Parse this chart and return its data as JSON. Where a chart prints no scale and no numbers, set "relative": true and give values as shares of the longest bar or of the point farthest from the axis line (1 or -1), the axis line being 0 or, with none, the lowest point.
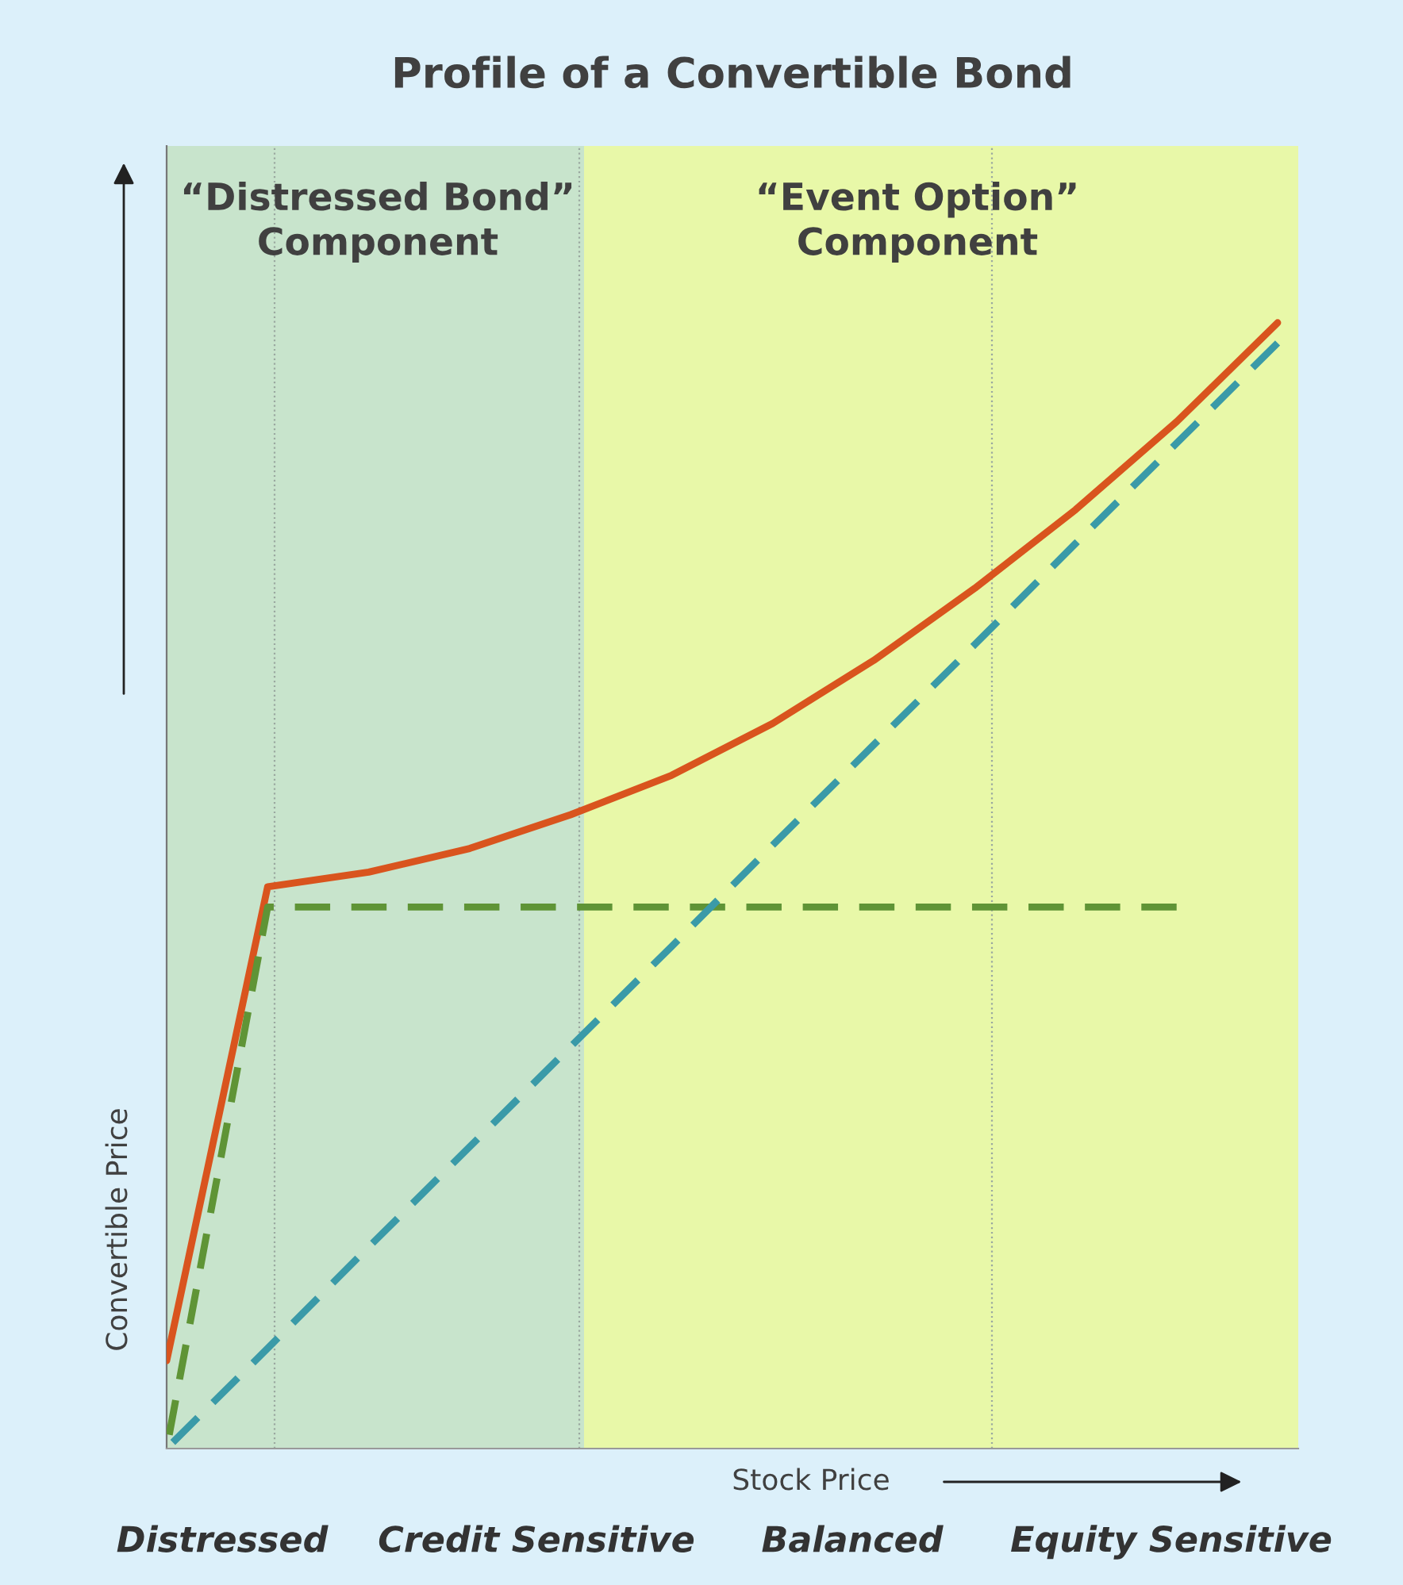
{
  "chart_data": {
    "type": "line",
    "title": "Profile of a Convertible Bond",
    "xlabel": "Stock Price",
    "ylabel": "Convertible Price",
    "relative": true,
    "categories": [
      null,
      null,
      null,
      null,
      null,
      null,
      null,
      null,
      null,
      null,
      null,
      null
    ],
    "series": [
      {
        "color": "#d9541e",
        "line_style": "solid",
        "values": [
          0.078,
          0.499,
          0.512,
          0.533,
          0.563,
          0.598,
          0.644,
          0.7,
          0.764,
          0.834,
          0.912,
          1.0
        ]
      },
      {
        "color": "#5f9436",
        "line_style": "dashed",
        "values": [
          0,
          0.481,
          0.481,
          0.481,
          0.481,
          0.481,
          0.481,
          0.481,
          0.481,
          0.481,
          0.481,
          null
        ]
      },
      {
        "color": "#3a9aa8",
        "line_style": "dashed",
        "values": [
          0,
          0.089,
          0.179,
          0.268,
          0.357,
          0.446,
          0.536,
          0.625,
          0.714,
          0.804,
          0.893,
          0.982
        ]
      }
    ],
    "annotations": [
      "“Distressed Bond”\nComponent",
      "“Event Option”\nComponent",
      "Distressed",
      "Credit Sensitive",
      "Balanced",
      "Equity Sensitive"
    ]
  }
}
